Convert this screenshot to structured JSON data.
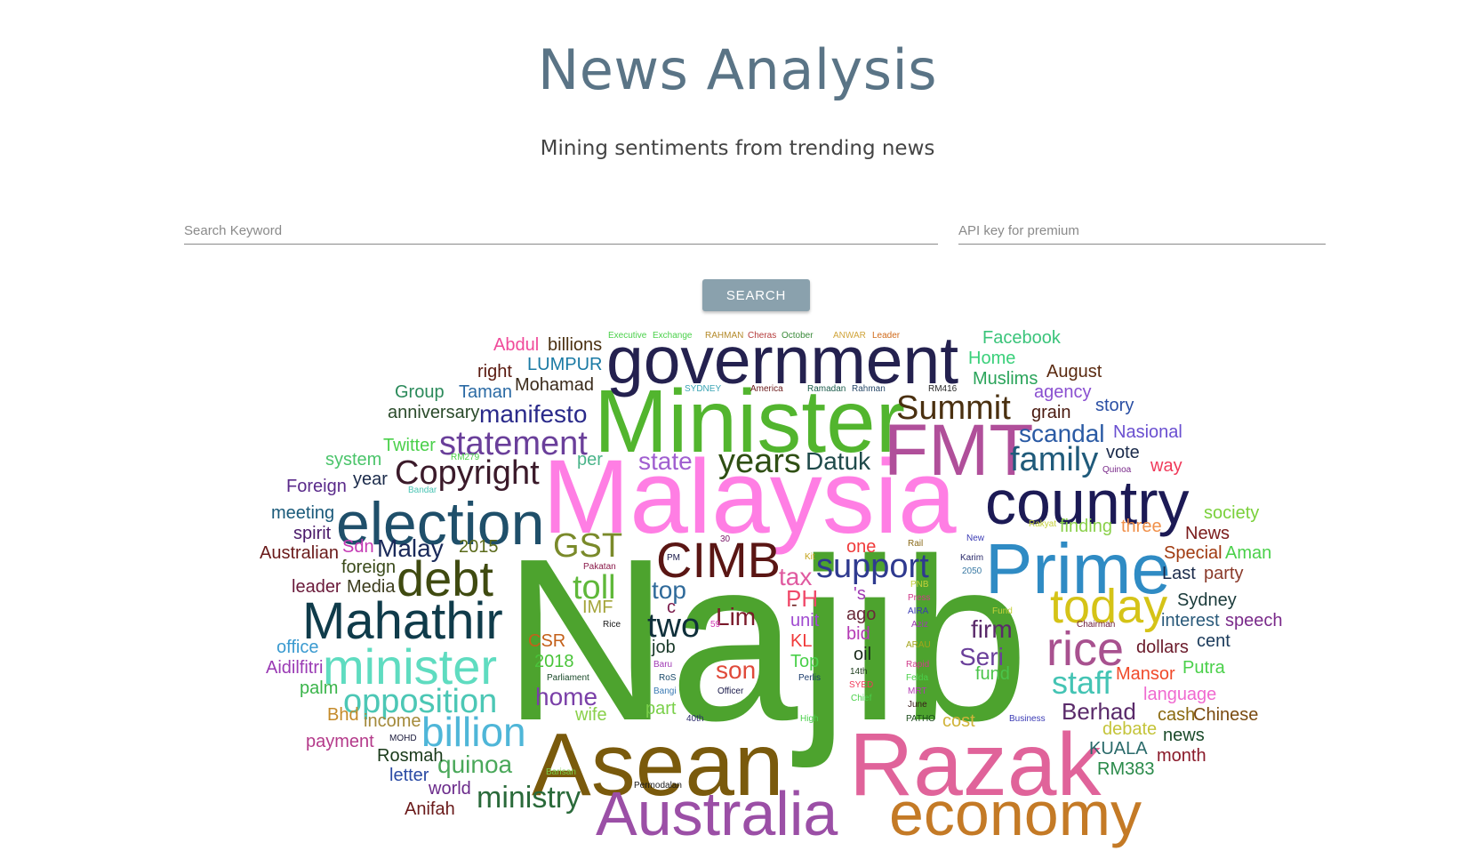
{
  "header": {
    "title": "News Analysis",
    "subtitle": "Mining sentiments from trending news"
  },
  "search": {
    "keyword_placeholder": "Search Keyword",
    "keyword_value": "",
    "apikey_placeholder": "API key for premium",
    "apikey_value": "",
    "button_label": "SEARCH"
  },
  "wordcloud": {
    "words": [
      {
        "text": "Najib",
        "color": "#4da32e"
      },
      {
        "text": "Malaysia",
        "color": "#ff7ee4"
      },
      {
        "text": "Minister",
        "color": "#52b52e"
      },
      {
        "text": "government",
        "color": "#24214f"
      },
      {
        "text": "Asean",
        "color": "#7a5a0c"
      },
      {
        "text": "Razak",
        "color": "#e0639a"
      },
      {
        "text": "Prime",
        "color": "#2f8bc4"
      },
      {
        "text": "country",
        "color": "#1c1a55"
      },
      {
        "text": "FMT",
        "color": "#b04f9a"
      },
      {
        "text": "election",
        "color": "#1f4f6a"
      },
      {
        "text": "Mahathir",
        "color": "#0f3b4a"
      },
      {
        "text": "minister",
        "color": "#5fdcc0"
      },
      {
        "text": "debt",
        "color": "#3f4a10"
      },
      {
        "text": "CIMB",
        "color": "#5a1614"
      },
      {
        "text": "today",
        "color": "#d5c317"
      },
      {
        "text": "rice",
        "color": "#a8518f"
      },
      {
        "text": "economy",
        "color": "#c47a26"
      },
      {
        "text": "Australia",
        "color": "#9b4fa6"
      },
      {
        "text": "billion",
        "color": "#4fb6d8"
      },
      {
        "text": "opposition",
        "color": "#4cc7b5"
      },
      {
        "text": "statement",
        "color": "#6a3f9a"
      },
      {
        "text": "Copyright",
        "color": "#3b1a2a"
      },
      {
        "text": "support",
        "color": "#2f3a8f"
      },
      {
        "text": "Summit",
        "color": "#4a3010"
      },
      {
        "text": "family",
        "color": "#1f5a7a"
      },
      {
        "text": "years",
        "color": "#2f4f14"
      },
      {
        "text": "GST",
        "color": "#7a8a2a"
      },
      {
        "text": "toll",
        "color": "#5fb83a"
      },
      {
        "text": "two",
        "color": "#0f2f3a"
      },
      {
        "text": "staff",
        "color": "#44c4b4"
      },
      {
        "text": "manifesto",
        "color": "#2a2a8a"
      },
      {
        "text": "scandal",
        "color": "#2a5aa4"
      },
      {
        "text": "Berhad",
        "color": "#5a2a6a"
      },
      {
        "text": "Datuk",
        "color": "#1f4a4a"
      },
      {
        "text": "Malay",
        "color": "#1a2a5a"
      },
      {
        "text": "home",
        "color": "#7a3fa8"
      },
      {
        "text": "quinoa",
        "color": "#4aa85a"
      },
      {
        "text": "ministry",
        "color": "#2a6a3a"
      },
      {
        "text": "Seri",
        "color": "#6a3f9a"
      },
      {
        "text": "firm",
        "color": "#5a2a6a"
      },
      {
        "text": "son",
        "color": "#e04a3a"
      },
      {
        "text": "Lim",
        "color": "#7a1a2a"
      },
      {
        "text": "top",
        "color": "#2f6a9a"
      },
      {
        "text": "state",
        "color": "#a05fd0"
      },
      {
        "text": "tax",
        "color": "#e05aa0"
      },
      {
        "text": "PH",
        "color": "#f04a6a"
      },
      {
        "text": "Facebook",
        "color": "#3ac47a"
      },
      {
        "text": "Home",
        "color": "#3ad07a"
      },
      {
        "text": "Muslims",
        "color": "#2aa45a"
      },
      {
        "text": "August",
        "color": "#5a2a10"
      },
      {
        "text": "agency",
        "color": "#8a4fd0"
      },
      {
        "text": "story",
        "color": "#2a4fa4"
      },
      {
        "text": "grain",
        "color": "#4a1a10"
      },
      {
        "text": "Nasional",
        "color": "#6a4fd0"
      },
      {
        "text": "vote",
        "color": "#1a2a4a"
      },
      {
        "text": "way",
        "color": "#f03a5a"
      },
      {
        "text": "society",
        "color": "#7ad03a"
      },
      {
        "text": "finding",
        "color": "#8ad04a"
      },
      {
        "text": "three",
        "color": "#f0904a"
      },
      {
        "text": "News",
        "color": "#7a1a1a"
      },
      {
        "text": "Special",
        "color": "#a03a10"
      },
      {
        "text": "Aman",
        "color": "#4ad04a"
      },
      {
        "text": "Last",
        "color": "#1a2a4a"
      },
      {
        "text": "party",
        "color": "#8a3a2a"
      },
      {
        "text": "Sydney",
        "color": "#1a3a3a"
      },
      {
        "text": "interest",
        "color": "#2a5a7a"
      },
      {
        "text": "speech",
        "color": "#7a2a8a"
      },
      {
        "text": "cent",
        "color": "#1a3a5a"
      },
      {
        "text": "dollars",
        "color": "#6a1a2a"
      },
      {
        "text": "Mansor",
        "color": "#f04a2a"
      },
      {
        "text": "Putra",
        "color": "#4ad04a"
      },
      {
        "text": "language",
        "color": "#f06ad0"
      },
      {
        "text": "cash",
        "color": "#8a6a10"
      },
      {
        "text": "Chinese",
        "color": "#7a4a10"
      },
      {
        "text": "debate",
        "color": "#c4c43a"
      },
      {
        "text": "news",
        "color": "#1a4a2a"
      },
      {
        "text": "KUALA",
        "color": "#2a6a6a"
      },
      {
        "text": "month",
        "color": "#8a1a2a"
      },
      {
        "text": "RM383",
        "color": "#2a8a4a"
      },
      {
        "text": "Abdul",
        "color": "#f04a9a"
      },
      {
        "text": "billions",
        "color": "#4a3010"
      },
      {
        "text": "right",
        "color": "#5a1a10"
      },
      {
        "text": "LUMPUR",
        "color": "#1a7aa4"
      },
      {
        "text": "Group",
        "color": "#2a8a5a"
      },
      {
        "text": "Taman",
        "color": "#2a6aa4"
      },
      {
        "text": "Mohamad",
        "color": "#3a2a1a"
      },
      {
        "text": "anniversary",
        "color": "#2a4a2a"
      },
      {
        "text": "Twitter",
        "color": "#4ad04a"
      },
      {
        "text": "system",
        "color": "#4ac46a"
      },
      {
        "text": "per",
        "color": "#4ab48a"
      },
      {
        "text": "year",
        "color": "#1a2a4a"
      },
      {
        "text": "Foreign",
        "color": "#5a2a8a"
      },
      {
        "text": "meeting",
        "color": "#1a5a7a"
      },
      {
        "text": "spirit",
        "color": "#4a1a6a"
      },
      {
        "text": "Sdn",
        "color": "#c43ab4"
      },
      {
        "text": "2015",
        "color": "#5a6a1a"
      },
      {
        "text": "Australian",
        "color": "#6a1a1a"
      },
      {
        "text": "foreign",
        "color": "#3a4a1a"
      },
      {
        "text": "leader",
        "color": "#6a1a3a"
      },
      {
        "text": "Media",
        "color": "#3a3a1a"
      },
      {
        "text": "office",
        "color": "#3a9ad0"
      },
      {
        "text": "Aidilfitri",
        "color": "#9a3ab4"
      },
      {
        "text": "palm",
        "color": "#3ab44a"
      },
      {
        "text": "Bhd",
        "color": "#c48a2a"
      },
      {
        "text": "income",
        "color": "#a48a3a"
      },
      {
        "text": "payment",
        "color": "#b43a8a"
      },
      {
        "text": "Rosmah",
        "color": "#1a3a1a"
      },
      {
        "text": "letter",
        "color": "#2a4aa4"
      },
      {
        "text": "world",
        "color": "#6a2a8a"
      },
      {
        "text": "Anifah",
        "color": "#6a1a1a"
      },
      {
        "text": "CSR",
        "color": "#c4601a"
      },
      {
        "text": "2018",
        "color": "#4ac43a"
      },
      {
        "text": "IMF",
        "color": "#a4a43a"
      },
      {
        "text": "job",
        "color": "#1a3a2a"
      },
      {
        "text": "wife",
        "color": "#8ad04a"
      },
      {
        "text": "part",
        "color": "#7ad04a"
      },
      {
        "text": "unit",
        "color": "#a04ad0"
      },
      {
        "text": "KL",
        "color": "#f03a3a"
      },
      {
        "text": "Top",
        "color": "#4ad04a"
      },
      {
        "text": "ago",
        "color": "#6a2a3a"
      },
      {
        "text": "bid",
        "color": "#b43ab4"
      },
      {
        "text": "oil",
        "color": "#1a2a1a"
      },
      {
        "text": "one",
        "color": "#f03a3a"
      },
      {
        "text": "'s",
        "color": "#a03ab4"
      },
      {
        "text": "fund",
        "color": "#4ac44a"
      },
      {
        "text": "cost",
        "color": "#d0b43a"
      },
      {
        "text": "c",
        "color": "#7a1a4a"
      },
      {
        "text": "-",
        "color": "#6a1a1a"
      },
      {
        "text": "Executive",
        "color": "#4ad04a"
      },
      {
        "text": "Exchange",
        "color": "#4ad04a"
      },
      {
        "text": "RAHMAN",
        "color": "#b48a2a"
      },
      {
        "text": "Cheras",
        "color": "#b43a3a"
      },
      {
        "text": "October",
        "color": "#3a8a3a"
      },
      {
        "text": "ANWAR",
        "color": "#d0a43a"
      },
      {
        "text": "Leader",
        "color": "#d06a1a"
      },
      {
        "text": "SYDNEY",
        "color": "#3aa4b4"
      },
      {
        "text": "America",
        "color": "#6a1a1a"
      },
      {
        "text": "Ramadan",
        "color": "#1a5a4a"
      },
      {
        "text": "Rahman",
        "color": "#2a4a6a"
      },
      {
        "text": "RM416",
        "color": "#2a2a2a"
      },
      {
        "text": "RM279",
        "color": "#4ad04a"
      },
      {
        "text": "Bandar",
        "color": "#4ac4b4"
      },
      {
        "text": "Quinoa",
        "color": "#7a2a8a"
      },
      {
        "text": "Rakyat",
        "color": "#c4d03a"
      },
      {
        "text": "30",
        "color": "#7a1a6a"
      },
      {
        "text": "PM",
        "color": "#1a1a4a"
      },
      {
        "text": "Pakatan",
        "color": "#8a1a4a"
      },
      {
        "text": "Kit",
        "color": "#c4a41a"
      },
      {
        "text": "Rail",
        "color": "#8a6a1a"
      },
      {
        "text": "New",
        "color": "#3a3ab4"
      },
      {
        "text": "Karim",
        "color": "#2a2a6a"
      },
      {
        "text": "2050",
        "color": "#3a7aa4"
      },
      {
        "text": "PNB",
        "color": "#c4d03a"
      },
      {
        "text": "Press",
        "color": "#d03a8a"
      },
      {
        "text": "AIRA",
        "color": "#3a3ab4"
      },
      {
        "text": "Fund",
        "color": "#c4d03a"
      },
      {
        "text": "Aziz",
        "color": "#a03ab4"
      },
      {
        "text": "Chairman",
        "color": "#6a1a3a"
      },
      {
        "text": "Rice",
        "color": "#1a1a1a"
      },
      {
        "text": "59",
        "color": "#d03ab4"
      },
      {
        "text": "ARAU",
        "color": "#a4a41a"
      },
      {
        "text": "Baru",
        "color": "#a03ab4"
      },
      {
        "text": "14th",
        "color": "#1a3a1a"
      },
      {
        "text": "Rapid",
        "color": "#d03a8a"
      },
      {
        "text": "RoS",
        "color": "#1a4a6a"
      },
      {
        "text": "Perlis",
        "color": "#1a3a6a"
      },
      {
        "text": "Felda",
        "color": "#4ad04a"
      },
      {
        "text": "Parliament",
        "color": "#1a4a2a"
      },
      {
        "text": "Officer",
        "color": "#1a1a4a"
      },
      {
        "text": "SYED",
        "color": "#f03a5a"
      },
      {
        "text": "MRT",
        "color": "#b43ab4"
      },
      {
        "text": "Bangi",
        "color": "#3a7ab4"
      },
      {
        "text": "Chief",
        "color": "#4ad04a"
      },
      {
        "text": "June",
        "color": "#3a1a1a"
      },
      {
        "text": "40th",
        "color": "#2a2a6a"
      },
      {
        "text": "High",
        "color": "#4ad04a"
      },
      {
        "text": "PATHO",
        "color": "#1a4a1a"
      },
      {
        "text": "Business",
        "color": "#3a3ab4"
      },
      {
        "text": "MOHD",
        "color": "#1a1a3a"
      },
      {
        "text": "Barisan",
        "color": "#7ad04a"
      },
      {
        "text": "Permodalan",
        "color": "#1a1a1a"
      }
    ]
  }
}
